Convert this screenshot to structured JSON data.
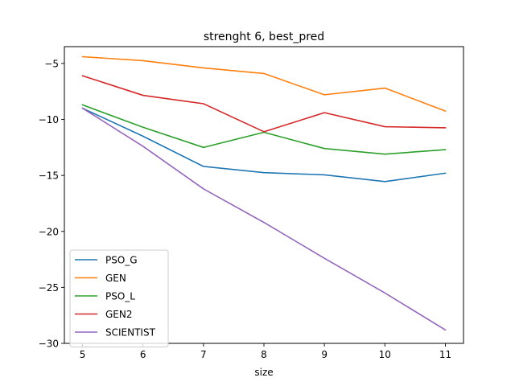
{
  "chart_data": {
    "type": "line",
    "title": "strenght 6, best_pred",
    "xlabel": "size",
    "ylabel": "",
    "x": [
      5,
      6,
      7,
      8,
      9,
      10,
      11
    ],
    "xlim": [
      4.7,
      11.3
    ],
    "ylim": [
      -30.0,
      -3.5
    ],
    "xticks": [
      5,
      6,
      7,
      8,
      9,
      10,
      11
    ],
    "yticks": [
      -30,
      -25,
      -20,
      -15,
      -10,
      -5
    ],
    "grid": false,
    "legend_position": "lower-left",
    "series": [
      {
        "name": "PSO_G",
        "color": "#1f77b4",
        "values": [
          -9.0,
          -11.5,
          -14.2,
          -14.75,
          -14.95,
          -15.55,
          -14.8
        ]
      },
      {
        "name": "GEN",
        "color": "#ff7f0e",
        "values": [
          -4.4,
          -4.75,
          -5.4,
          -5.9,
          -7.8,
          -7.2,
          -9.25
        ]
      },
      {
        "name": "PSO_L",
        "color": "#2ca02c",
        "values": [
          -8.7,
          -10.7,
          -12.5,
          -11.15,
          -12.6,
          -13.1,
          -12.7
        ]
      },
      {
        "name": "GEN2",
        "color": "#d62728",
        "values": [
          -6.1,
          -7.85,
          -8.6,
          -11.1,
          -9.4,
          -10.65,
          -10.75
        ]
      },
      {
        "name": "SCIENTIST",
        "color": "#9467bd",
        "values": [
          -9.0,
          -12.4,
          -16.2,
          -19.2,
          -22.4,
          -25.5,
          -28.8
        ]
      }
    ]
  }
}
